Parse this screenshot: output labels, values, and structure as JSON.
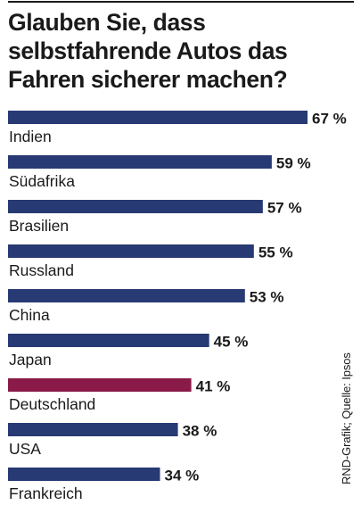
{
  "title": "Glauben Sie, dass\nselbstfahrende Autos das\nFahren sicherer machen?",
  "source": "RND-Grafik; Quelle: Ipsos",
  "colors": {
    "default_bar": "#283a73",
    "highlight_bar": "#8a1a47",
    "text": "#1a1a1a"
  },
  "chart_data": {
    "type": "bar",
    "orientation": "horizontal",
    "title": "Glauben Sie, dass selbstfahrende Autos das Fahren sicherer machen?",
    "unit": "%",
    "categories": [
      "Indien",
      "Südafrika",
      "Brasilien",
      "Russland",
      "China",
      "Japan",
      "Deutschland",
      "USA",
      "Frankreich"
    ],
    "values": [
      67,
      59,
      57,
      55,
      53,
      45,
      41,
      38,
      34
    ],
    "value_labels": [
      "67 %",
      "59 %",
      "57 %",
      "55 %",
      "53 %",
      "45 %",
      "41 %",
      "38 %",
      "34 %"
    ],
    "highlight": "Deutschland"
  }
}
